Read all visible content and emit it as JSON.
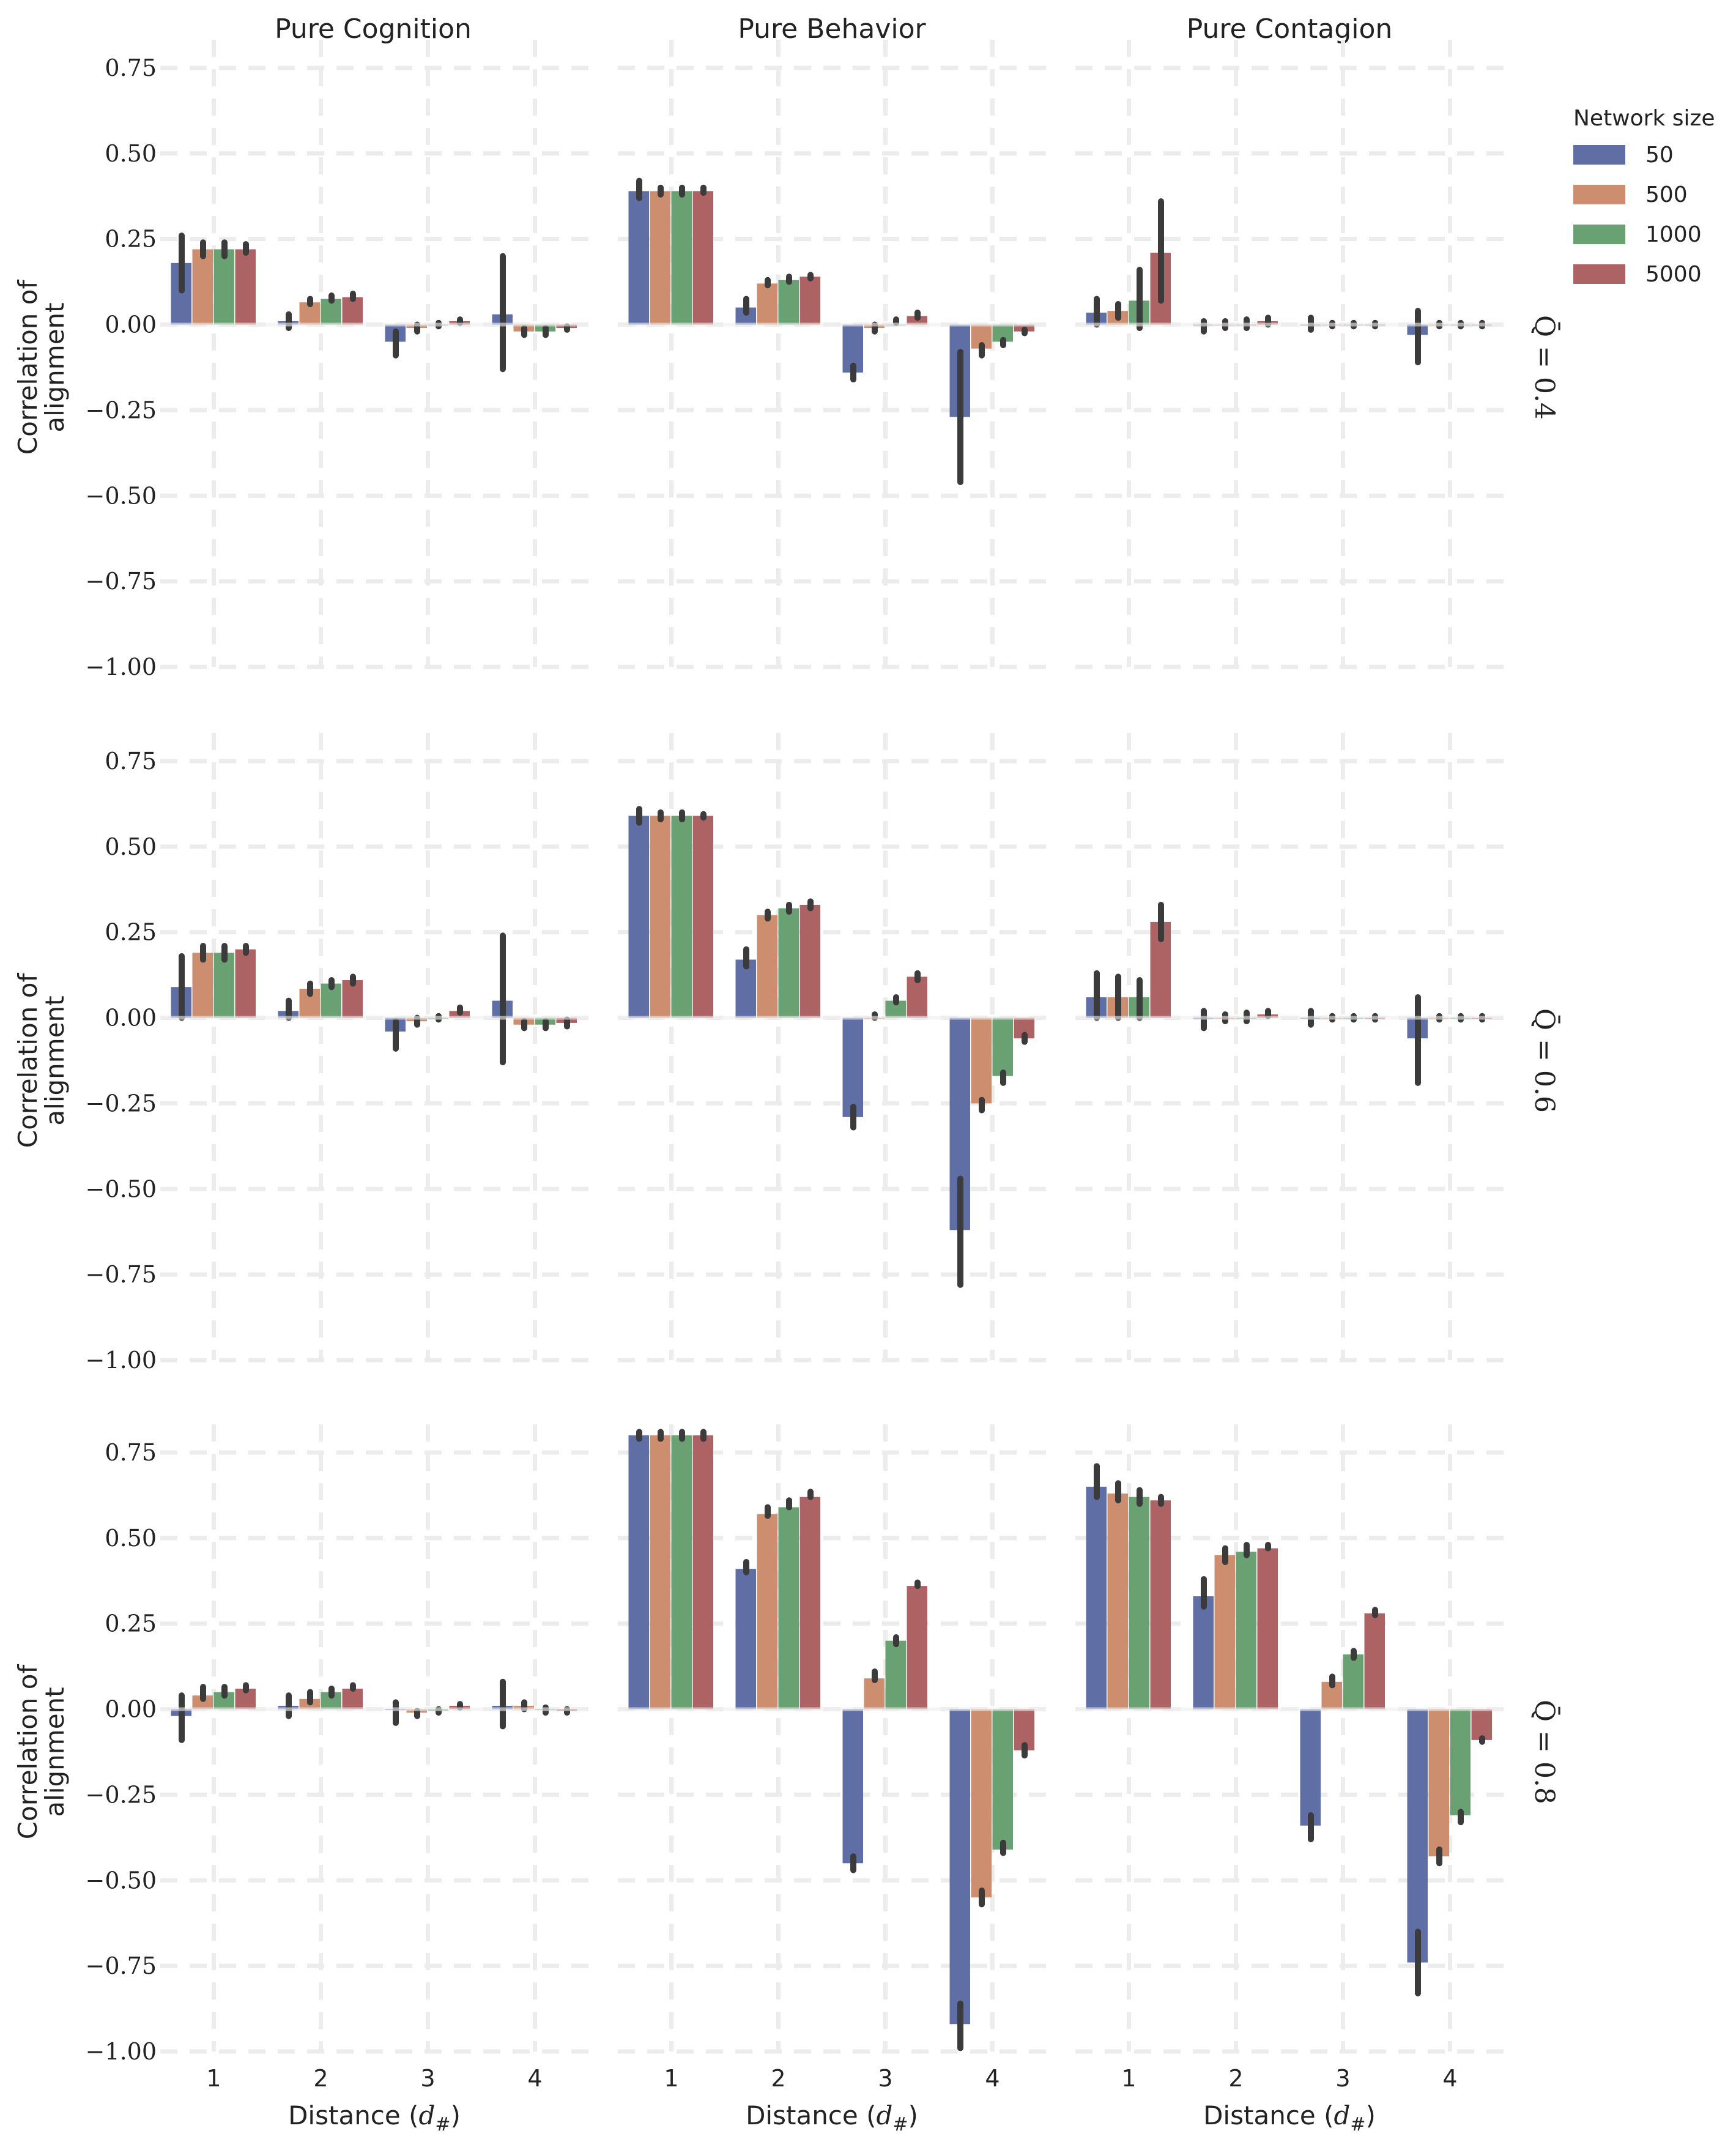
{
  "colors": {
    "50": "#5f6fa6",
    "500": "#cc8e6e",
    "1000": "#6aa173",
    "5000": "#ad6363"
  },
  "legend": {
    "title": "Network size",
    "entries": [
      "50",
      "500",
      "1000",
      "5000"
    ]
  },
  "chart_data": {
    "type": "bar",
    "columns": [
      "Pure Cognition",
      "Pure Behavior",
      "Pure Contagion"
    ],
    "rows": [
      "Q̄ = 0.4",
      "Q̄ = 0.6",
      "Q̄ = 0.8"
    ],
    "categories": [
      "1",
      "2",
      "3",
      "4"
    ],
    "xlabel": "Distance (d#)",
    "ylabel_line1": "Correlation of",
    "ylabel_line2": "alignment",
    "ylim": [
      -1.0,
      0.85
    ],
    "yticks": [
      -1.0,
      -0.75,
      -0.5,
      -0.25,
      0.0,
      0.25,
      0.5,
      0.75
    ],
    "ytick_labels": [
      "−1.00",
      "−0.75",
      "−0.50",
      "−0.25",
      "0.00",
      "0.25",
      "0.50",
      "0.75"
    ],
    "series_names": [
      "50",
      "500",
      "1000",
      "5000"
    ],
    "panels": [
      [
        {
          "values": [
            [
              0.18,
              0.22,
              0.22,
              0.22
            ],
            [
              0.01,
              0.065,
              0.075,
              0.08
            ],
            [
              -0.05,
              -0.01,
              0.0,
              0.01
            ],
            [
              0.03,
              -0.02,
              -0.02,
              -0.01
            ]
          ],
          "errors": [
            [
              [
                0.1,
                0.26
              ],
              [
                0.2,
                0.24
              ],
              [
                0.2,
                0.24
              ],
              [
                0.21,
                0.235
              ]
            ],
            [
              [
                -0.01,
                0.03
              ],
              [
                0.06,
                0.075
              ],
              [
                0.07,
                0.085
              ],
              [
                0.075,
                0.09
              ]
            ],
            [
              [
                -0.09,
                -0.02
              ],
              [
                -0.02,
                0.0
              ],
              [
                -0.005,
                0.005
              ],
              [
                0.005,
                0.015
              ]
            ],
            [
              [
                -0.13,
                0.2
              ],
              [
                -0.03,
                -0.01
              ],
              [
                -0.03,
                -0.01
              ],
              [
                -0.015,
                -0.005
              ]
            ]
          ]
        },
        {
          "values": [
            [
              0.39,
              0.39,
              0.39,
              0.39
            ],
            [
              0.05,
              0.12,
              0.13,
              0.14
            ],
            [
              -0.14,
              -0.01,
              0.0,
              0.025
            ],
            [
              -0.27,
              -0.07,
              -0.05,
              -0.02
            ]
          ],
          "errors": [
            [
              [
                0.37,
                0.42
              ],
              [
                0.38,
                0.4
              ],
              [
                0.38,
                0.4
              ],
              [
                0.385,
                0.4
              ]
            ],
            [
              [
                0.035,
                0.075
              ],
              [
                0.115,
                0.13
              ],
              [
                0.125,
                0.14
              ],
              [
                0.135,
                0.145
              ]
            ],
            [
              [
                -0.16,
                -0.12
              ],
              [
                -0.02,
                0.0
              ],
              [
                0.005,
                0.015
              ],
              [
                0.02,
                0.035
              ]
            ],
            [
              [
                -0.46,
                -0.08
              ],
              [
                -0.09,
                -0.06
              ],
              [
                -0.06,
                -0.045
              ],
              [
                -0.025,
                -0.015
              ]
            ]
          ]
        },
        {
          "values": [
            [
              0.035,
              0.04,
              0.07,
              0.21
            ],
            [
              0.0,
              0.0,
              0.0,
              0.01
            ],
            [
              0.0,
              0.0,
              0.0,
              0.0
            ],
            [
              -0.03,
              0.0,
              0.0,
              0.0
            ]
          ],
          "errors": [
            [
              [
                0.0,
                0.075
              ],
              [
                0.02,
                0.06
              ],
              [
                -0.01,
                0.16
              ],
              [
                0.07,
                0.36
              ]
            ],
            [
              [
                -0.02,
                0.01
              ],
              [
                -0.01,
                0.01
              ],
              [
                -0.01,
                0.015
              ],
              [
                0.0,
                0.02
              ]
            ],
            [
              [
                -0.015,
                0.02
              ],
              [
                -0.005,
                0.005
              ],
              [
                -0.005,
                0.005
              ],
              [
                -0.005,
                0.005
              ]
            ],
            [
              [
                -0.11,
                0.04
              ],
              [
                -0.005,
                0.005
              ],
              [
                -0.005,
                0.005
              ],
              [
                -0.005,
                0.005
              ]
            ]
          ]
        }
      ],
      [
        {
          "values": [
            [
              0.09,
              0.19,
              0.19,
              0.2
            ],
            [
              0.02,
              0.085,
              0.1,
              0.11
            ],
            [
              -0.04,
              -0.01,
              0.0,
              0.02
            ],
            [
              0.05,
              -0.02,
              -0.02,
              -0.015
            ]
          ],
          "errors": [
            [
              [
                0.0,
                0.18
              ],
              [
                0.17,
                0.21
              ],
              [
                0.17,
                0.21
              ],
              [
                0.19,
                0.21
              ]
            ],
            [
              [
                0.0,
                0.05
              ],
              [
                0.07,
                0.1
              ],
              [
                0.09,
                0.11
              ],
              [
                0.1,
                0.12
              ]
            ],
            [
              [
                -0.09,
                -0.01
              ],
              [
                -0.02,
                0.0
              ],
              [
                -0.005,
                0.005
              ],
              [
                0.015,
                0.03
              ]
            ],
            [
              [
                -0.13,
                0.24
              ],
              [
                -0.03,
                -0.01
              ],
              [
                -0.03,
                -0.01
              ],
              [
                -0.025,
                -0.005
              ]
            ]
          ]
        },
        {
          "values": [
            [
              0.59,
              0.59,
              0.59,
              0.59
            ],
            [
              0.17,
              0.3,
              0.32,
              0.33
            ],
            [
              -0.29,
              0.0,
              0.05,
              0.12
            ],
            [
              -0.62,
              -0.25,
              -0.17,
              -0.06
            ]
          ],
          "errors": [
            [
              [
                0.57,
                0.61
              ],
              [
                0.58,
                0.6
              ],
              [
                0.58,
                0.6
              ],
              [
                0.585,
                0.595
              ]
            ],
            [
              [
                0.15,
                0.2
              ],
              [
                0.29,
                0.31
              ],
              [
                0.31,
                0.33
              ],
              [
                0.32,
                0.34
              ]
            ],
            [
              [
                -0.32,
                -0.26
              ],
              [
                0.0,
                0.01
              ],
              [
                0.045,
                0.06
              ],
              [
                0.11,
                0.13
              ]
            ],
            [
              [
                -0.78,
                -0.47
              ],
              [
                -0.27,
                -0.24
              ],
              [
                -0.19,
                -0.16
              ],
              [
                -0.07,
                -0.05
              ]
            ]
          ]
        },
        {
          "values": [
            [
              0.06,
              0.06,
              0.06,
              0.28
            ],
            [
              0.0,
              0.0,
              0.0,
              0.01
            ],
            [
              0.0,
              0.0,
              0.0,
              0.0
            ],
            [
              -0.06,
              0.0,
              0.0,
              0.0
            ]
          ],
          "errors": [
            [
              [
                0.0,
                0.13
              ],
              [
                0.0,
                0.12
              ],
              [
                0.0,
                0.11
              ],
              [
                0.23,
                0.33
              ]
            ],
            [
              [
                -0.03,
                0.02
              ],
              [
                -0.01,
                0.01
              ],
              [
                -0.01,
                0.015
              ],
              [
                0.005,
                0.02
              ]
            ],
            [
              [
                -0.02,
                0.02
              ],
              [
                -0.005,
                0.005
              ],
              [
                -0.005,
                0.005
              ],
              [
                -0.005,
                0.005
              ]
            ],
            [
              [
                -0.19,
                0.06
              ],
              [
                -0.005,
                0.005
              ],
              [
                -0.005,
                0.005
              ],
              [
                -0.005,
                0.005
              ]
            ]
          ]
        }
      ],
      [
        {
          "values": [
            [
              -0.02,
              0.04,
              0.05,
              0.06
            ],
            [
              0.01,
              0.03,
              0.05,
              0.06
            ],
            [
              0.0,
              -0.01,
              -0.005,
              0.01
            ],
            [
              0.01,
              0.01,
              0.0,
              -0.005
            ]
          ],
          "errors": [
            [
              [
                -0.09,
                0.04
              ],
              [
                0.03,
                0.065
              ],
              [
                0.04,
                0.065
              ],
              [
                0.055,
                0.07
              ]
            ],
            [
              [
                -0.02,
                0.04
              ],
              [
                0.02,
                0.05
              ],
              [
                0.04,
                0.06
              ],
              [
                0.06,
                0.07
              ]
            ],
            [
              [
                -0.04,
                0.02
              ],
              [
                -0.02,
                -0.005
              ],
              [
                -0.01,
                0.0
              ],
              [
                0.005,
                0.015
              ]
            ],
            [
              [
                -0.05,
                0.08
              ],
              [
                0.0,
                0.02
              ],
              [
                -0.01,
                0.005
              ],
              [
                -0.01,
                0.0
              ]
            ]
          ]
        },
        {
          "values": [
            [
              0.8,
              0.8,
              0.8,
              0.8
            ],
            [
              0.41,
              0.57,
              0.59,
              0.62
            ],
            [
              -0.45,
              0.09,
              0.2,
              0.36
            ],
            [
              -0.92,
              -0.55,
              -0.41,
              -0.12
            ]
          ],
          "errors": [
            [
              [
                0.79,
                0.81
              ],
              [
                0.79,
                0.81
              ],
              [
                0.79,
                0.81
              ],
              [
                0.79,
                0.81
              ]
            ],
            [
              [
                0.4,
                0.43
              ],
              [
                0.565,
                0.59
              ],
              [
                0.59,
                0.61
              ],
              [
                0.62,
                0.635
              ]
            ],
            [
              [
                -0.47,
                -0.43
              ],
              [
                0.085,
                0.11
              ],
              [
                0.19,
                0.21
              ],
              [
                0.36,
                0.37
              ]
            ],
            [
              [
                -0.99,
                -0.86
              ],
              [
                -0.57,
                -0.53
              ],
              [
                -0.42,
                -0.39
              ],
              [
                -0.135,
                -0.105
              ]
            ]
          ]
        },
        {
          "values": [
            [
              0.65,
              0.63,
              0.62,
              0.61
            ],
            [
              0.33,
              0.45,
              0.46,
              0.47
            ],
            [
              -0.34,
              0.08,
              0.16,
              0.28
            ],
            [
              -0.74,
              -0.43,
              -0.31,
              -0.09
            ]
          ],
          "errors": [
            [
              [
                0.62,
                0.71
              ],
              [
                0.61,
                0.66
              ],
              [
                0.6,
                0.64
              ],
              [
                0.6,
                0.62
              ]
            ],
            [
              [
                0.3,
                0.38
              ],
              [
                0.43,
                0.47
              ],
              [
                0.45,
                0.48
              ],
              [
                0.47,
                0.48
              ]
            ],
            [
              [
                -0.38,
                -0.31
              ],
              [
                0.07,
                0.095
              ],
              [
                0.15,
                0.17
              ],
              [
                0.275,
                0.29
              ]
            ],
            [
              [
                -0.83,
                -0.65
              ],
              [
                -0.45,
                -0.41
              ],
              [
                -0.33,
                -0.3
              ],
              [
                -0.095,
                -0.085
              ]
            ]
          ]
        }
      ]
    ]
  }
}
